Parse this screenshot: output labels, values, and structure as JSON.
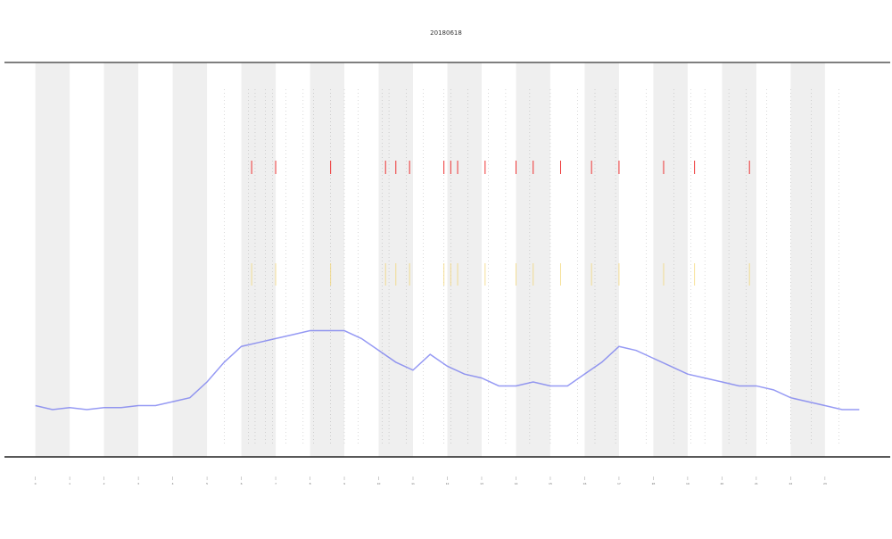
{
  "chart_data": {
    "type": "line",
    "title": "20180618",
    "x": [
      0,
      0.5,
      1,
      1.5,
      2,
      2.5,
      3,
      3.5,
      4,
      4.5,
      5,
      5.5,
      6,
      6.5,
      7,
      7.5,
      8,
      8.5,
      9,
      9.5,
      10,
      10.5,
      11,
      11.5,
      12,
      12.5,
      13,
      13.5,
      14,
      14.5,
      15,
      15.5,
      16,
      16.5,
      17,
      17.5,
      18,
      18.5,
      19,
      19.5,
      20,
      20.5,
      21,
      21.5,
      22,
      22.5,
      23,
      23.5,
      24
    ],
    "series": [
      {
        "color": "#6a6ff0",
        "values": [
          13,
          12,
          12.5,
          12,
          12.5,
          12.5,
          13,
          13,
          14,
          15,
          19,
          24,
          28,
          29,
          30,
          31,
          32,
          32,
          32,
          30,
          27,
          24,
          22,
          26,
          23,
          21,
          20,
          18,
          18,
          19,
          18,
          18,
          21,
          24,
          28,
          27,
          25,
          23,
          21,
          20,
          19,
          18,
          18,
          17,
          15,
          14,
          13,
          12,
          12
        ]
      }
    ],
    "events": [
      5.5,
      6.2,
      6.4,
      6.7,
      6.9,
      7.3,
      7.8,
      8.1,
      8.6,
      9.0,
      9.4,
      10.1,
      10.3,
      10.8,
      11.3,
      11.9,
      12.1,
      12.6,
      13.2,
      13.7,
      14.4,
      15.0,
      15.8,
      16.3,
      16.9,
      17.8,
      18.6,
      19.1,
      19.5,
      20.2,
      20.7,
      21.3,
      22.0,
      22.6,
      23.4
    ],
    "alerts": [
      6.3,
      7.0,
      8.6,
      10.2,
      10.5,
      10.9,
      11.9,
      12.1,
      12.3,
      13.1,
      14.0,
      14.5,
      15.3,
      16.2,
      17.0,
      18.3,
      19.2,
      20.8
    ],
    "xlim": [
      -0.9,
      24.9
    ],
    "ylim": [
      0,
      100
    ],
    "xticks": [
      0,
      1,
      2,
      3,
      4,
      5,
      6,
      7,
      8,
      9,
      10,
      11,
      12,
      13,
      14,
      15,
      16,
      17,
      18,
      19,
      20,
      21,
      22,
      23
    ]
  }
}
